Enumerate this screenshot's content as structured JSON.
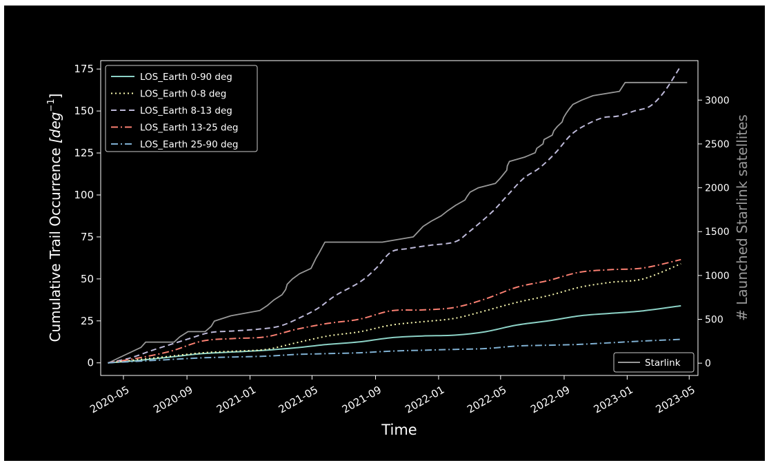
{
  "chart_data": {
    "type": "line",
    "title": "",
    "xlabel": "Time",
    "ylabel_base": "Cumulative Trail Occurrence ",
    "ylabel_unit": "[deg",
    "ylabel_exp": "−1",
    "ylabel_close": "]",
    "y2label": "# Launched Starlink satellites",
    "xlim": [
      "2020-03-18",
      "2023-05-18"
    ],
    "ylim": [
      -7.5,
      180
    ],
    "y2lim": [
      -140,
      3450
    ],
    "x_ticks": [
      "2020-05",
      "2020-09",
      "2021-01",
      "2021-05",
      "2021-09",
      "2022-01",
      "2022-05",
      "2022-09",
      "2023-01",
      "2023-05"
    ],
    "x_tick_dates": [
      "2020-05-01",
      "2020-09-01",
      "2021-01-01",
      "2021-05-01",
      "2021-09-01",
      "2022-01-01",
      "2022-05-01",
      "2022-09-01",
      "2023-01-01",
      "2023-05-01"
    ],
    "y_ticks": [
      "0",
      "25",
      "50",
      "75",
      "100",
      "125",
      "150",
      "175"
    ],
    "y2_ticks": [
      "0",
      "500",
      "1000",
      "1500",
      "2000",
      "2500",
      "3000"
    ],
    "grid": false,
    "legend_position": "top-left",
    "legend2_position": "bottom-right",
    "series": [
      {
        "name": "LOS_Earth 0-90 deg",
        "color": "#8dd3c7",
        "style": "solid",
        "axis": "left",
        "x": [
          "2020-04-01",
          "2020-06-01",
          "2020-08-01",
          "2020-10-01",
          "2020-12-01",
          "2021-02-01",
          "2021-04-01",
          "2021-06-01",
          "2021-08-01",
          "2021-10-01",
          "2021-12-01",
          "2022-02-01",
          "2022-04-01",
          "2022-06-01",
          "2022-08-01",
          "2022-10-01",
          "2022-12-01",
          "2023-02-01",
          "2023-04-15"
        ],
        "y": [
          0,
          1.5,
          3.5,
          5.5,
          6.5,
          7.5,
          9,
          11,
          12.5,
          15,
          16,
          16.5,
          18.5,
          22.5,
          25,
          28,
          29.5,
          31,
          34
        ]
      },
      {
        "name": "LOS_Earth 0-8 deg",
        "color": "#ffffb3",
        "style": "dotted",
        "axis": "left",
        "x": [
          "2020-04-01",
          "2020-06-01",
          "2020-08-01",
          "2020-10-01",
          "2020-12-01",
          "2021-02-01",
          "2021-04-01",
          "2021-06-01",
          "2021-08-01",
          "2021-10-01",
          "2021-12-01",
          "2022-02-01",
          "2022-04-01",
          "2022-06-01",
          "2022-08-01",
          "2022-10-01",
          "2022-12-01",
          "2023-02-01",
          "2023-04-15"
        ],
        "y": [
          0,
          2,
          4,
          6,
          7,
          8,
          12,
          16,
          18.5,
          22.5,
          24.5,
          26.5,
          31,
          36,
          40,
          45,
          48,
          50,
          59
        ]
      },
      {
        "name": "LOS_Earth 8-13 deg",
        "color": "#bebada",
        "style": "dashed",
        "axis": "left",
        "x": [
          "2020-04-01",
          "2020-05-15",
          "2020-07-01",
          "2020-09-01",
          "2020-10-15",
          "2020-12-01",
          "2021-01-15",
          "2021-03-01",
          "2021-04-15",
          "2021-05-15",
          "2021-06-15",
          "2021-08-01",
          "2021-09-01",
          "2021-10-01",
          "2021-11-01",
          "2021-12-15",
          "2022-02-01",
          "2022-03-01",
          "2022-04-15",
          "2022-05-15",
          "2022-06-15",
          "2022-07-15",
          "2022-08-15",
          "2022-09-15",
          "2022-10-15",
          "2022-11-15",
          "2022-12-15",
          "2023-01-15",
          "2023-02-15",
          "2023-03-15",
          "2023-04-15"
        ],
        "y": [
          0,
          3,
          8,
          14,
          18,
          19,
          20,
          22,
          28,
          33,
          40,
          48,
          56,
          66,
          68,
          70,
          72,
          78,
          90,
          100,
          110,
          116,
          125,
          136,
          142,
          146,
          147,
          150,
          153,
          162,
          177
        ]
      },
      {
        "name": "LOS_Earth 13-25 deg",
        "color": "#fb8072",
        "style": "dashdot",
        "axis": "left",
        "x": [
          "2020-04-01",
          "2020-06-01",
          "2020-08-01",
          "2020-10-01",
          "2020-12-01",
          "2021-02-01",
          "2021-04-01",
          "2021-06-01",
          "2021-08-01",
          "2021-10-01",
          "2021-12-01",
          "2022-02-01",
          "2022-04-01",
          "2022-06-01",
          "2022-08-01",
          "2022-10-01",
          "2022-12-01",
          "2023-02-01",
          "2023-04-15"
        ],
        "y": [
          0,
          3,
          7,
          13,
          14.5,
          15.5,
          20,
          23.5,
          26,
          31,
          31.5,
          33,
          38,
          45,
          49,
          54,
          55.5,
          56.5,
          61.5
        ]
      },
      {
        "name": "LOS_Earth 25-90 deg",
        "color": "#80b1d3",
        "style": "dashdot",
        "axis": "left",
        "x": [
          "2020-04-01",
          "2020-06-01",
          "2020-08-01",
          "2020-10-01",
          "2020-12-01",
          "2021-02-01",
          "2021-04-01",
          "2021-06-01",
          "2021-08-01",
          "2021-10-01",
          "2021-12-01",
          "2022-02-01",
          "2022-04-01",
          "2022-06-01",
          "2022-08-01",
          "2022-10-01",
          "2022-12-01",
          "2023-02-01",
          "2023-04-15"
        ],
        "y": [
          0,
          1,
          2,
          3,
          3.5,
          4,
          5,
          5.5,
          6,
          7,
          7.5,
          8,
          8.5,
          10,
          10.5,
          11,
          12,
          13,
          14
        ]
      },
      {
        "name": "Starlink",
        "color": "#999999",
        "style": "solid",
        "axis": "right",
        "x": [
          "2020-04-01",
          "2020-04-22",
          "2020-06-04",
          "2020-06-13",
          "2020-08-07",
          "2020-08-18",
          "2020-09-03",
          "2020-10-06",
          "2020-10-18",
          "2020-10-24",
          "2020-11-25",
          "2021-01-20",
          "2021-02-04",
          "2021-02-16",
          "2021-03-04",
          "2021-03-11",
          "2021-03-14",
          "2021-03-24",
          "2021-04-07",
          "2021-04-29",
          "2021-05-04",
          "2021-05-09",
          "2021-05-15",
          "2021-05-26",
          "2021-09-14",
          "2021-11-13",
          "2021-12-02",
          "2021-12-18",
          "2022-01-06",
          "2022-01-19",
          "2022-02-03",
          "2022-02-21",
          "2022-02-25",
          "2022-03-03",
          "2022-03-19",
          "2022-04-21",
          "2022-04-29",
          "2022-05-06",
          "2022-05-13",
          "2022-05-14",
          "2022-05-18",
          "2022-06-17",
          "2022-07-07",
          "2022-07-10",
          "2022-07-22",
          "2022-07-24",
          "2022-08-09",
          "2022-08-12",
          "2022-08-19",
          "2022-08-28",
          "2022-08-31",
          "2022-09-05",
          "2022-09-11",
          "2022-09-18",
          "2022-10-05",
          "2022-10-27",
          "2022-12-17",
          "2022-12-28",
          "2023-04-27"
        ],
        "y": [
          0,
          60,
          180,
          240,
          240,
          300,
          360,
          360,
          420,
          480,
          540,
          600,
          660,
          720,
          780,
          840,
          900,
          960,
          1020,
          1080,
          1140,
          1200,
          1260,
          1380,
          1380,
          1440,
          1560,
          1620,
          1680,
          1740,
          1800,
          1860,
          1900,
          1950,
          2000,
          2050,
          2100,
          2150,
          2200,
          2250,
          2300,
          2350,
          2400,
          2450,
          2500,
          2550,
          2600,
          2650,
          2700,
          2750,
          2800,
          2850,
          2900,
          2950,
          3000,
          3050,
          3100,
          3200,
          3200
        ]
      }
    ]
  }
}
